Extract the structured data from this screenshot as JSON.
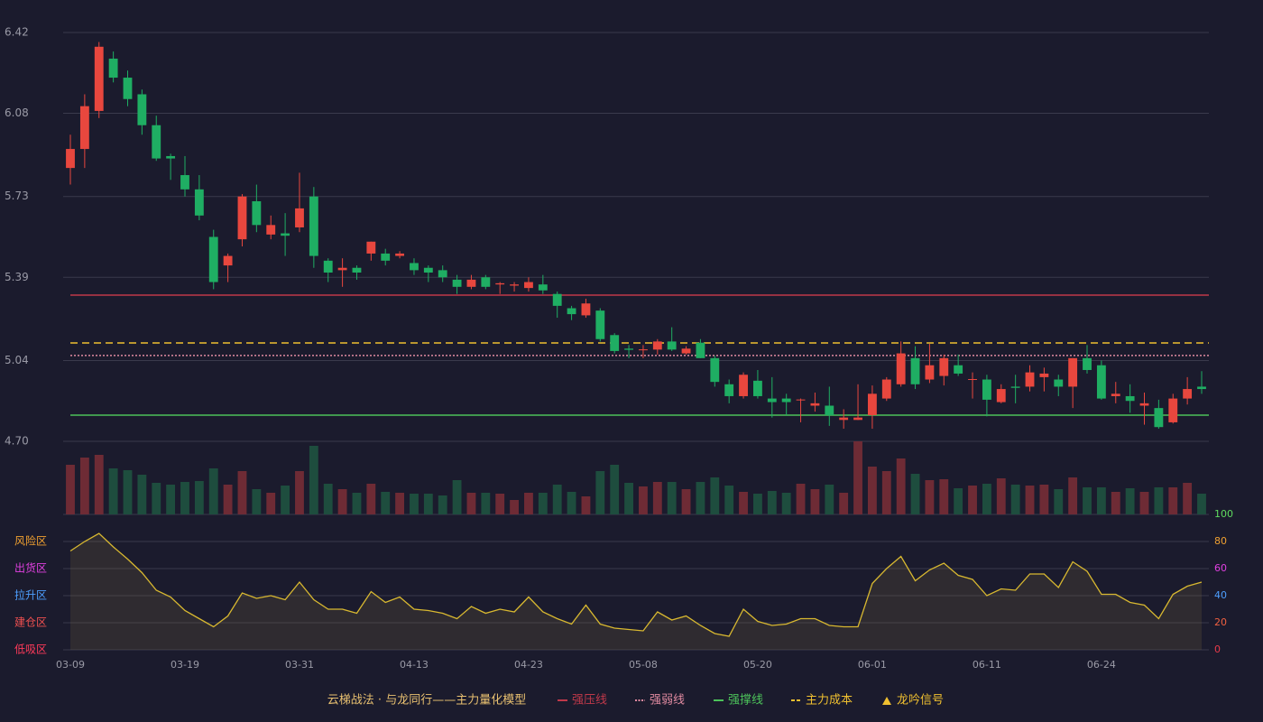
{
  "chart_data": {
    "type": "candlestick",
    "categories": [
      "03-09",
      null,
      null,
      null,
      null,
      null,
      null,
      null,
      "03-19",
      null,
      null,
      null,
      null,
      null,
      null,
      null,
      "03-31",
      null,
      null,
      null,
      null,
      null,
      null,
      null,
      "04-13",
      null,
      null,
      null,
      null,
      null,
      null,
      null,
      "04-23",
      null,
      null,
      null,
      null,
      null,
      null,
      null,
      "05-08",
      null,
      null,
      null,
      null,
      null,
      null,
      null,
      "05-20",
      null,
      null,
      null,
      null,
      null,
      null,
      null,
      "06-01",
      null,
      null,
      null,
      null,
      null,
      null,
      null,
      "06-11",
      null,
      null,
      null,
      null,
      null,
      null,
      null,
      "06-24",
      null,
      null,
      null,
      null,
      null,
      null,
      null
    ],
    "open": [
      5.85,
      5.93,
      6.09,
      6.31,
      6.23,
      6.16,
      6.03,
      5.9,
      5.82,
      5.76,
      5.56,
      5.44,
      5.55,
      5.71,
      5.57,
      5.575,
      5.6,
      5.73,
      5.46,
      5.42,
      5.43,
      5.49,
      5.49,
      5.48,
      5.45,
      5.43,
      5.42,
      5.38,
      5.35,
      5.39,
      5.36,
      5.355,
      5.345,
      5.36,
      5.32,
      5.26,
      5.23,
      5.25,
      5.147,
      5.09,
      5.083,
      5.086,
      5.12,
      5.07,
      5.115,
      5.05,
      4.94,
      4.89,
      4.955,
      4.88,
      4.88,
      4.875,
      4.85,
      4.85,
      4.79,
      4.79,
      4.81,
      4.88,
      4.94,
      5.05,
      4.96,
      4.975,
      5.02,
      4.96,
      4.96,
      4.865,
      4.93,
      4.93,
      4.97,
      4.96,
      4.93,
      5.05,
      5.02,
      4.89,
      4.89,
      4.85,
      4.84,
      4.78,
      4.88,
      4.93
    ],
    "high": [
      5.99,
      6.16,
      6.38,
      6.34,
      6.26,
      6.18,
      6.07,
      5.91,
      5.9,
      5.82,
      5.59,
      5.49,
      5.74,
      5.78,
      5.65,
      5.66,
      5.83,
      5.77,
      5.47,
      5.47,
      5.44,
      5.54,
      5.51,
      5.5,
      5.47,
      5.44,
      5.44,
      5.4,
      5.4,
      5.4,
      5.37,
      5.37,
      5.39,
      5.4,
      5.33,
      5.27,
      5.3,
      5.26,
      5.155,
      5.105,
      5.105,
      5.13,
      5.18,
      5.1,
      5.13,
      5.06,
      4.96,
      4.99,
      5.0,
      4.97,
      4.9,
      4.88,
      4.905,
      4.93,
      4.835,
      4.94,
      4.935,
      4.97,
      5.12,
      5.1,
      5.11,
      5.065,
      5.065,
      4.99,
      4.98,
      4.94,
      4.98,
      5.02,
      5.01,
      4.98,
      5.05,
      5.105,
      5.04,
      4.95,
      4.94,
      4.905,
      4.875,
      4.9,
      4.97,
      4.995
    ],
    "low": [
      5.78,
      5.85,
      6.06,
      6.21,
      6.11,
      5.99,
      5.88,
      5.8,
      5.73,
      5.63,
      5.34,
      5.37,
      5.52,
      5.58,
      5.55,
      5.48,
      5.58,
      5.43,
      5.37,
      5.35,
      5.38,
      5.46,
      5.44,
      5.47,
      5.4,
      5.37,
      5.37,
      5.32,
      5.34,
      5.34,
      5.32,
      5.33,
      5.33,
      5.32,
      5.22,
      5.21,
      5.22,
      5.12,
      5.07,
      5.05,
      5.05,
      5.065,
      5.08,
      5.065,
      5.05,
      4.93,
      4.86,
      4.88,
      4.88,
      4.8,
      4.81,
      4.78,
      4.825,
      4.765,
      4.753,
      4.79,
      4.753,
      4.87,
      4.93,
      4.92,
      4.945,
      4.935,
      4.975,
      4.88,
      4.805,
      4.86,
      4.86,
      4.91,
      4.91,
      4.89,
      4.84,
      4.985,
      4.875,
      4.86,
      4.82,
      4.77,
      4.753,
      4.775,
      4.855,
      4.9
    ],
    "close": [
      5.93,
      6.11,
      6.36,
      6.23,
      6.14,
      6.03,
      5.89,
      5.89,
      5.76,
      5.65,
      5.37,
      5.48,
      5.73,
      5.61,
      5.61,
      5.565,
      5.68,
      5.48,
      5.41,
      5.43,
      5.41,
      5.54,
      5.46,
      5.49,
      5.42,
      5.41,
      5.39,
      5.35,
      5.38,
      5.35,
      5.365,
      5.36,
      5.37,
      5.335,
      5.27,
      5.235,
      5.28,
      5.13,
      5.08,
      5.085,
      5.087,
      5.12,
      5.086,
      5.09,
      5.05,
      4.95,
      4.89,
      4.98,
      4.89,
      4.865,
      4.865,
      4.876,
      4.86,
      4.81,
      4.8,
      4.8,
      4.9,
      4.96,
      5.07,
      4.94,
      5.02,
      5.05,
      4.985,
      4.962,
      4.875,
      4.92,
      4.925,
      4.99,
      4.985,
      4.93,
      5.05,
      5.0,
      4.88,
      4.9,
      4.87,
      4.86,
      4.76,
      4.88,
      4.92,
      4.92
    ],
    "volume": [
      55,
      63,
      66,
      51,
      49,
      44,
      35,
      33,
      36,
      37,
      51,
      33,
      48,
      28,
      24,
      32,
      48,
      76,
      34,
      28,
      24,
      34,
      25,
      24,
      23,
      23,
      21,
      38,
      24,
      24,
      23,
      16,
      24,
      24,
      33,
      25,
      20,
      48,
      55,
      35,
      31,
      36,
      36,
      28,
      36,
      41,
      32,
      25,
      23,
      26,
      24,
      34,
      28,
      33,
      24,
      81,
      53,
      48,
      62,
      45,
      38,
      39,
      29,
      32,
      34,
      40,
      33,
      32,
      33,
      28,
      41,
      30,
      30,
      25,
      29,
      25,
      30,
      30,
      35,
      23
    ],
    "up_color": "#e8473e",
    "down_color": "#1fae63",
    "volume_up_color": "#6e2b35",
    "volume_down_color": "#1e4d3e",
    "ylim": [
      4.7,
      6.42
    ],
    "yticks": [
      {
        "value": 4.7,
        "label": "4.70"
      },
      5.04,
      5.39,
      5.73,
      6.08,
      6.42
    ],
    "grid": true,
    "levels": [
      {
        "name": "强压线",
        "value": 5.315,
        "color": "#c0394a",
        "dash": "solid"
      },
      {
        "name": "强弱线",
        "value": 5.061,
        "color": "#e08aa0",
        "dash": "dotted"
      },
      {
        "name": "强撑线",
        "value": 4.81,
        "color": "#4cc25a",
        "dash": "solid"
      },
      {
        "name": "主力成本",
        "value": 5.114,
        "color": "#f0c030",
        "dash": "dashed"
      },
      {
        "name": "龙吟信号",
        "color": "#f0c030",
        "marker": "triangle"
      }
    ],
    "legend_title": "云梯战法 · 与龙同行——主力量化模型",
    "indicator": {
      "values": [
        73,
        80,
        86,
        76,
        67,
        57,
        44,
        39,
        29,
        23,
        17,
        25,
        42,
        38,
        40,
        37,
        50,
        37,
        30,
        30,
        27,
        43,
        35,
        39,
        30,
        29,
        27,
        23,
        32,
        27,
        30,
        28,
        39,
        28,
        23,
        19,
        33,
        19,
        16,
        15,
        14,
        28,
        22,
        25,
        18,
        12,
        10,
        30,
        21,
        18,
        19,
        23,
        23,
        18,
        17,
        17,
        49,
        60,
        69,
        51,
        59,
        64,
        55,
        52,
        40,
        45,
        44,
        56,
        56,
        46,
        65,
        58,
        41,
        41,
        35,
        33,
        23,
        41,
        47,
        50
      ],
      "color": "#d8b830",
      "ylim": [
        0,
        100
      ],
      "yticks": [
        0,
        20,
        40,
        60,
        80,
        100
      ],
      "ytick_colors": [
        "#e83a4a",
        "#f06040",
        "#4d9fff",
        "#e040e0",
        "#f0a030",
        "#5fdb5f"
      ],
      "zones": [
        {
          "name": "风险区",
          "value": 80,
          "color": "#f0a030"
        },
        {
          "name": "出货区",
          "value": 60,
          "color": "#e040e0"
        },
        {
          "name": "拉升区",
          "value": 40,
          "color": "#4d9fff"
        },
        {
          "name": "建仓区",
          "value": 20,
          "color": "#f05050"
        },
        {
          "name": "低吸区",
          "value": 0,
          "color": "#ff3a5a"
        }
      ]
    }
  }
}
